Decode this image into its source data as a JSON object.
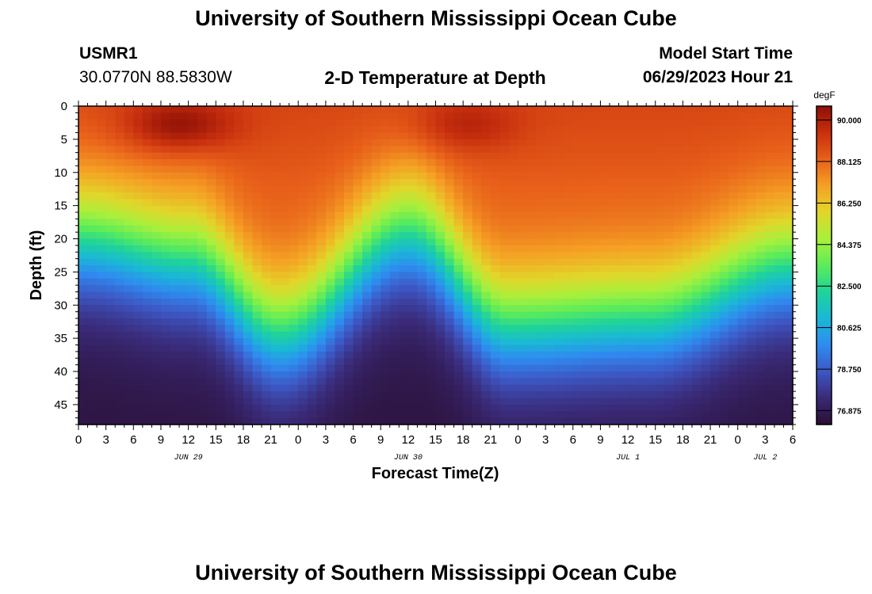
{
  "header": {
    "title": "University of Southern Mississippi Ocean Cube",
    "station_id": "USMR1",
    "coords": "30.0770N  88.5830W",
    "plot_title": "2-D Temperature at Depth",
    "model_label": "Model Start Time",
    "model_time": "06/29/2023 Hour 21"
  },
  "footer": {
    "title": "University of Southern Mississippi Ocean Cube"
  },
  "chart_data": {
    "type": "heatmap",
    "title": "2-D Temperature at Depth",
    "xlabel": "Forecast Time(Z)",
    "ylabel": "Depth (ft)",
    "x_range_hours": [
      0,
      78
    ],
    "x_tick_labels": [
      "0",
      "3",
      "6",
      "9",
      "12",
      "15",
      "18",
      "21",
      "0",
      "3",
      "6",
      "9",
      "12",
      "15",
      "18",
      "21",
      "0",
      "3",
      "6",
      "9",
      "12",
      "15",
      "18",
      "21",
      "0",
      "3",
      "6"
    ],
    "date_labels": [
      {
        "label": "JUN 29",
        "hour": 12
      },
      {
        "label": "JUN 30",
        "hour": 36
      },
      {
        "label": "JUL 1",
        "hour": 60
      },
      {
        "label": "JUL 2",
        "hour": 75
      }
    ],
    "ylim": [
      0,
      48
    ],
    "y_ticks": [
      0,
      5,
      10,
      15,
      20,
      25,
      30,
      35,
      40,
      45
    ],
    "colorbar": {
      "unit": "degF",
      "range": [
        76.25,
        90.625
      ],
      "tick_labels": [
        "90.000",
        "88.125",
        "86.250",
        "84.375",
        "82.500",
        "80.625",
        "78.750",
        "76.875"
      ],
      "colors": [
        "#2a0e31",
        "#3a2a78",
        "#3d57c4",
        "#2f8bf0",
        "#1ab8d6",
        "#1fd39a",
        "#5cec5a",
        "#a8f03c",
        "#e2d62a",
        "#f5a024",
        "#e8601a",
        "#c8300e",
        "#8e0f06"
      ]
    },
    "thermocline_depth_ft": [
      {
        "hour": 0,
        "depth": 20
      },
      {
        "hour": 12,
        "depth": 23
      },
      {
        "hour": 22,
        "depth": 34
      },
      {
        "hour": 36,
        "depth": 19
      },
      {
        "hour": 47,
        "depth": 33
      },
      {
        "hour": 62,
        "depth": 32
      },
      {
        "hour": 78,
        "depth": 24
      }
    ],
    "warm_cores": [
      {
        "hour": 11,
        "depth": 3,
        "temp": 90.3
      },
      {
        "hour": 42,
        "depth": 3,
        "temp": 89.5
      }
    ]
  }
}
